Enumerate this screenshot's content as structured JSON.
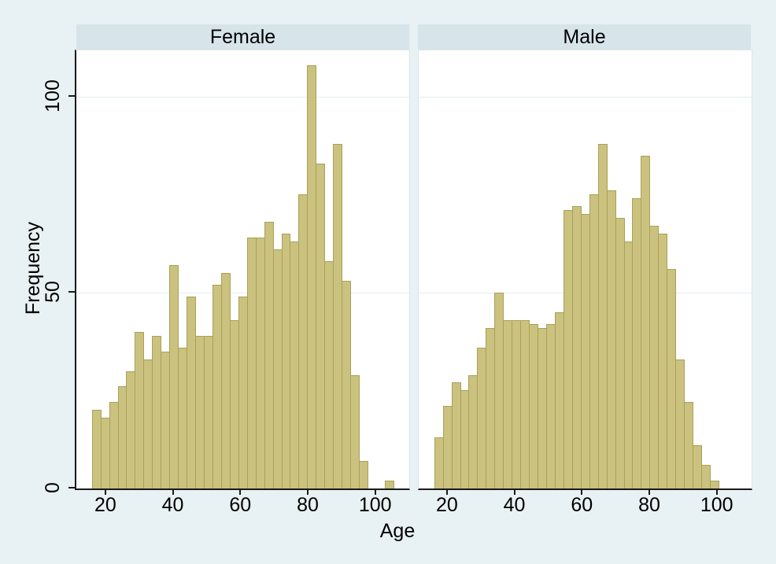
{
  "chart_data": {
    "type": "bar",
    "subtype": "faceted-histogram",
    "xlabel": "Age",
    "ylabel": "Frequency",
    "x_ticks": [
      20,
      40,
      60,
      80,
      100
    ],
    "y_ticks": [
      0,
      50,
      100
    ],
    "grid_tick_values": [
      50,
      100
    ],
    "x_range": [
      11.4,
      110.1
    ],
    "y_range": [
      0,
      111.8
    ],
    "bin_start": 16,
    "bin_width": 2.554,
    "legend": "none",
    "grid": "horizontal-only",
    "panels": [
      {
        "label": "Female",
        "values": [
          20,
          18,
          22,
          26,
          30,
          40,
          33,
          39,
          35,
          57,
          36,
          49,
          39,
          39,
          52,
          55,
          43,
          49,
          64,
          64,
          68,
          61,
          65,
          63,
          75,
          108,
          83,
          58,
          88,
          53,
          29,
          7,
          0,
          0,
          2
        ]
      },
      {
        "label": "Male",
        "values": [
          13,
          21,
          27,
          25,
          29,
          36,
          41,
          50,
          43,
          43,
          43,
          42,
          41,
          42,
          45,
          71,
          72,
          70,
          75,
          88,
          76,
          69,
          63,
          74,
          85,
          67,
          65,
          56,
          33,
          22,
          11,
          6,
          2,
          0,
          0
        ]
      }
    ]
  },
  "colors": {
    "background": "#E8F1F3",
    "header_bg": "#D7E4EA",
    "plot_bg": "#FFFFFF",
    "grid": "#E3EDF1",
    "bar_fill": "#CAC27E",
    "bar_stroke": "#A8A159",
    "axis": "#1A1A1A",
    "plot_border": "#D9E5EA",
    "text": "#000000"
  }
}
